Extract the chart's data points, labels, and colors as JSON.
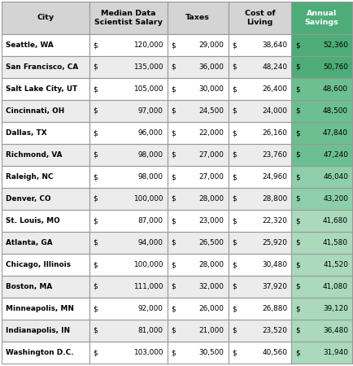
{
  "columns": [
    "City",
    "Median Data\nScientist Salary",
    "Taxes",
    "Cost of\nLiving",
    "Annual\nSavings"
  ],
  "rows": [
    [
      "Seattle, WA",
      120000,
      29000,
      38640,
      52360
    ],
    [
      "San Francisco, CA",
      135000,
      36000,
      48240,
      50760
    ],
    [
      "Salt Lake City, UT",
      105000,
      30000,
      26400,
      48600
    ],
    [
      "Cincinnati, OH",
      97000,
      24500,
      24000,
      48500
    ],
    [
      "Dallas, TX",
      96000,
      22000,
      26160,
      47840
    ],
    [
      "Richmond, VA",
      98000,
      27000,
      23760,
      47240
    ],
    [
      "Raleigh, NC",
      98000,
      27000,
      24960,
      46040
    ],
    [
      "Denver, CO",
      100000,
      28000,
      28800,
      43200
    ],
    [
      "St. Louis, MO",
      87000,
      23000,
      22320,
      41680
    ],
    [
      "Atlanta, GA",
      94000,
      26500,
      25920,
      41580
    ],
    [
      "Chicago, Illinois",
      100000,
      28000,
      30480,
      41520
    ],
    [
      "Boston, MA",
      111000,
      32000,
      37920,
      41080
    ],
    [
      "Minneapolis, MN",
      92000,
      26000,
      26880,
      39120
    ],
    [
      "Indianapolis, IN",
      81000,
      21000,
      23520,
      36480
    ],
    [
      "Washington D.C.",
      103000,
      30500,
      40560,
      31940
    ]
  ],
  "header_bg": "#d4d4d4",
  "odd_row_bg": "#ffffff",
  "even_row_bg": "#ececec",
  "savings_dark_green": "#4dac78",
  "savings_mid_green": "#6bbf90",
  "savings_light_green": "#8dcfaa",
  "savings_very_light_green": "#aad9bc",
  "grid_color": "#999999",
  "savings_breakpoints": [
    50000,
    47000,
    43000,
    39000
  ]
}
